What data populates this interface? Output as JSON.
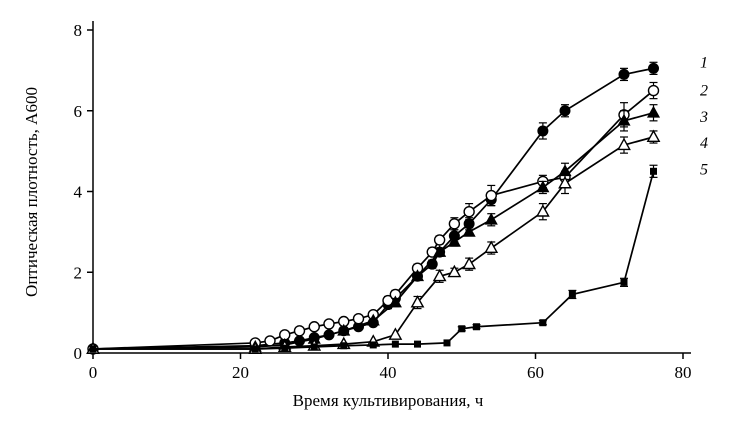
{
  "figure": {
    "background": "#ffffff",
    "axis_color": "#000000",
    "line_color": "#000000",
    "marker_fill": "#000000",
    "marker_open_fill": "#ffffff"
  },
  "chart_data": {
    "type": "line",
    "title": "",
    "xlabel": "Время культивирования, ч",
    "ylabel": "Оптическая плотность, А600",
    "xlim": [
      0,
      80
    ],
    "ylim": [
      0,
      8
    ],
    "xticks": [
      0,
      20,
      40,
      60,
      80
    ],
    "yticks": [
      0,
      2,
      4,
      6,
      8
    ],
    "grid": false,
    "legend_position": "right-inline-numbers",
    "series": [
      {
        "name": "1",
        "marker": "filled-circle",
        "label_y": 7.2,
        "points": [
          [
            0,
            0.1,
            0
          ],
          [
            22,
            0.18,
            0
          ],
          [
            26,
            0.25,
            0
          ],
          [
            28,
            0.3,
            0
          ],
          [
            30,
            0.38,
            0
          ],
          [
            32,
            0.45,
            0
          ],
          [
            34,
            0.55,
            0
          ],
          [
            36,
            0.65,
            0
          ],
          [
            38,
            0.75,
            0
          ],
          [
            40,
            1.2,
            0.1
          ],
          [
            41,
            1.35,
            0.1
          ],
          [
            44,
            1.9,
            0.1
          ],
          [
            46,
            2.2,
            0.1
          ],
          [
            47,
            2.5,
            0.1
          ],
          [
            49,
            2.9,
            0.15
          ],
          [
            51,
            3.2,
            0.15
          ],
          [
            54,
            3.8,
            0.15
          ],
          [
            61,
            5.5,
            0.2
          ],
          [
            64,
            6.0,
            0.15
          ],
          [
            72,
            6.9,
            0.15
          ],
          [
            76,
            7.05,
            0.15
          ]
        ]
      },
      {
        "name": "2",
        "marker": "open-circle",
        "label_y": 6.5,
        "points": [
          [
            0,
            0.1,
            0
          ],
          [
            22,
            0.25,
            0
          ],
          [
            24,
            0.3,
            0
          ],
          [
            26,
            0.45,
            0
          ],
          [
            28,
            0.55,
            0
          ],
          [
            30,
            0.65,
            0
          ],
          [
            32,
            0.72,
            0
          ],
          [
            34,
            0.78,
            0
          ],
          [
            36,
            0.85,
            0
          ],
          [
            38,
            0.95,
            0
          ],
          [
            40,
            1.3,
            0.1
          ],
          [
            41,
            1.45,
            0.1
          ],
          [
            44,
            2.1,
            0.1
          ],
          [
            46,
            2.5,
            0.1
          ],
          [
            47,
            2.8,
            0.1
          ],
          [
            49,
            3.2,
            0.15
          ],
          [
            51,
            3.5,
            0.2
          ],
          [
            54,
            3.9,
            0.25
          ],
          [
            61,
            4.25,
            0.15
          ],
          [
            64,
            4.35,
            0.15
          ],
          [
            72,
            5.9,
            0.3
          ],
          [
            76,
            6.5,
            0.2
          ]
        ]
      },
      {
        "name": "3",
        "marker": "filled-triangle",
        "label_y": 5.85,
        "points": [
          [
            0,
            0.1,
            0
          ],
          [
            22,
            0.15,
            0
          ],
          [
            26,
            0.2,
            0
          ],
          [
            30,
            0.35,
            0
          ],
          [
            34,
            0.55,
            0
          ],
          [
            38,
            0.8,
            0
          ],
          [
            41,
            1.25,
            0.1
          ],
          [
            44,
            1.9,
            0.1
          ],
          [
            47,
            2.5,
            0.1
          ],
          [
            49,
            2.75,
            0.1
          ],
          [
            51,
            3.0,
            0.1
          ],
          [
            54,
            3.3,
            0.15
          ],
          [
            61,
            4.1,
            0.15
          ],
          [
            64,
            4.5,
            0.2
          ],
          [
            72,
            5.75,
            0.25
          ],
          [
            76,
            5.95,
            0.2
          ]
        ]
      },
      {
        "name": "4",
        "marker": "open-triangle",
        "label_y": 5.2,
        "points": [
          [
            0,
            0.1,
            0
          ],
          [
            22,
            0.1,
            0
          ],
          [
            26,
            0.15,
            0
          ],
          [
            30,
            0.18,
            0
          ],
          [
            34,
            0.22,
            0
          ],
          [
            38,
            0.28,
            0
          ],
          [
            41,
            0.45,
            0
          ],
          [
            44,
            1.25,
            0.15
          ],
          [
            47,
            1.9,
            0.15
          ],
          [
            49,
            2.0,
            0.1
          ],
          [
            51,
            2.2,
            0.15
          ],
          [
            54,
            2.6,
            0.15
          ],
          [
            61,
            3.5,
            0.2
          ],
          [
            64,
            4.2,
            0.25
          ],
          [
            72,
            5.15,
            0.2
          ],
          [
            76,
            5.35,
            0.15
          ]
        ]
      },
      {
        "name": "5",
        "marker": "filled-square",
        "label_y": 4.55,
        "points": [
          [
            0,
            0.1,
            0
          ],
          [
            22,
            0.1,
            0
          ],
          [
            26,
            0.12,
            0
          ],
          [
            30,
            0.15,
            0
          ],
          [
            34,
            0.18,
            0
          ],
          [
            38,
            0.2,
            0
          ],
          [
            41,
            0.22,
            0
          ],
          [
            44,
            0.22,
            0
          ],
          [
            48,
            0.25,
            0
          ],
          [
            50,
            0.6,
            0.05
          ],
          [
            52,
            0.65,
            0.05
          ],
          [
            61,
            0.75,
            0.05
          ],
          [
            65,
            1.45,
            0.1
          ],
          [
            72,
            1.75,
            0.1
          ],
          [
            76,
            4.5,
            0.15
          ]
        ]
      }
    ]
  }
}
